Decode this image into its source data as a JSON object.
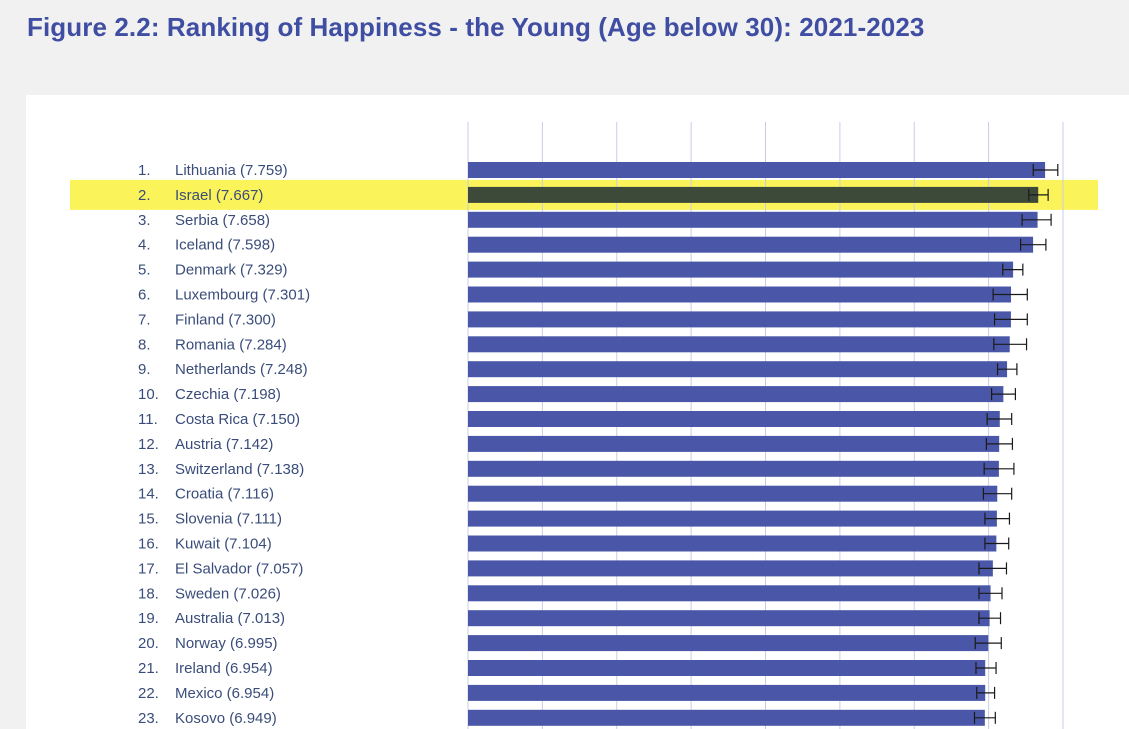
{
  "page": {
    "title": "Figure 2.2: Ranking of Happiness - the Young (Age below 30): 2021-2023"
  },
  "colors": {
    "background": "#f1f1f1",
    "panel": "#ffffff",
    "title": "#3f4ea3",
    "bar": "#4a57a8",
    "highlight_bar": "#3d4a3a",
    "highlight_band": "#fbf35a",
    "label": "#3a4d7a",
    "gridline": "#c9cde3",
    "error_bar": "#1a1a1a"
  },
  "chart_data": {
    "type": "bar",
    "orientation": "horizontal",
    "highlighted_rank": 2,
    "xlim": [
      0,
      8
    ],
    "grid": true,
    "categories": [
      "1. Lithuania (7.759)",
      "2. Israel (7.667)",
      "3. Serbia (7.658)",
      "4. Iceland (7.598)",
      "5. Denmark (7.329)",
      "6. Luxembourg (7.301)",
      "7. Finland (7.300)",
      "8. Romania (7.284)",
      "9. Netherlands (7.248)",
      "10. Czechia (7.198)",
      "11. Costa Rica (7.150)",
      "12. Austria (7.142)",
      "13. Switzerland (7.138)",
      "14. Croatia (7.116)",
      "15. Slovenia (7.111)",
      "16. Kuwait (7.104)",
      "17. El Salvador (7.057)",
      "18. Sweden (7.026)",
      "19. Australia (7.013)",
      "20. Norway (6.995)",
      "21. Ireland (6.954)",
      "22. Mexico (6.954)",
      "23. Kosovo (6.949)"
    ],
    "rows": [
      {
        "rank": "1.",
        "country": "Lithuania",
        "value": 7.759,
        "err_low": 7.6,
        "err_high": 7.93
      },
      {
        "rank": "2.",
        "country": "Israel",
        "value": 7.667,
        "err_low": 7.54,
        "err_high": 7.8
      },
      {
        "rank": "3.",
        "country": "Serbia",
        "value": 7.658,
        "err_low": 7.45,
        "err_high": 7.84
      },
      {
        "rank": "4.",
        "country": "Iceland",
        "value": 7.598,
        "err_low": 7.43,
        "err_high": 7.77
      },
      {
        "rank": "5.",
        "country": "Denmark",
        "value": 7.329,
        "err_low": 7.19,
        "err_high": 7.46
      },
      {
        "rank": "6.",
        "country": "Luxembourg",
        "value": 7.301,
        "err_low": 7.06,
        "err_high": 7.52
      },
      {
        "rank": "7.",
        "country": "Finland",
        "value": 7.3,
        "err_low": 7.08,
        "err_high": 7.52
      },
      {
        "rank": "8.",
        "country": "Romania",
        "value": 7.284,
        "err_low": 7.07,
        "err_high": 7.51
      },
      {
        "rank": "9.",
        "country": "Netherlands",
        "value": 7.248,
        "err_low": 7.12,
        "err_high": 7.38
      },
      {
        "rank": "10.",
        "country": "Czechia",
        "value": 7.198,
        "err_low": 7.04,
        "err_high": 7.36
      },
      {
        "rank": "11.",
        "country": "Costa Rica",
        "value": 7.15,
        "err_low": 6.98,
        "err_high": 7.31
      },
      {
        "rank": "12.",
        "country": "Austria",
        "value": 7.142,
        "err_low": 6.97,
        "err_high": 7.32
      },
      {
        "rank": "13.",
        "country": "Switzerland",
        "value": 7.138,
        "err_low": 6.94,
        "err_high": 7.34
      },
      {
        "rank": "14.",
        "country": "Croatia",
        "value": 7.116,
        "err_low": 6.93,
        "err_high": 7.31
      },
      {
        "rank": "15.",
        "country": "Slovenia",
        "value": 7.111,
        "err_low": 6.95,
        "err_high": 7.28
      },
      {
        "rank": "16.",
        "country": "Kuwait",
        "value": 7.104,
        "err_low": 6.95,
        "err_high": 7.27
      },
      {
        "rank": "17.",
        "country": "El Salvador",
        "value": 7.057,
        "err_low": 6.87,
        "err_high": 7.24
      },
      {
        "rank": "18.",
        "country": "Sweden",
        "value": 7.026,
        "err_low": 6.87,
        "err_high": 7.18
      },
      {
        "rank": "19.",
        "country": "Australia",
        "value": 7.013,
        "err_low": 6.87,
        "err_high": 7.16
      },
      {
        "rank": "20.",
        "country": "Norway",
        "value": 6.995,
        "err_low": 6.82,
        "err_high": 7.17
      },
      {
        "rank": "21.",
        "country": "Ireland",
        "value": 6.954,
        "err_low": 6.83,
        "err_high": 7.1
      },
      {
        "rank": "22.",
        "country": "Mexico",
        "value": 6.954,
        "err_low": 6.84,
        "err_high": 7.08
      },
      {
        "rank": "23.",
        "country": "Kosovo",
        "value": 6.949,
        "err_low": 6.81,
        "err_high": 7.09
      }
    ]
  }
}
